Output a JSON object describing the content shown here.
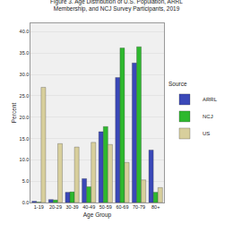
{
  "chart_data": {
    "type": "bar",
    "title": "Figure 3. Age Distribution of U.S. Population, ARRL Membership, and NCJ Survey Participants, 2019",
    "x_label": "Age Group",
    "y_label": "Percent",
    "legend_title": "Source",
    "categories": [
      "1-19",
      "20-29",
      "30-39",
      "40-49",
      "50-59",
      "60-69",
      "70-79",
      "80+"
    ],
    "series": [
      {
        "name": "ARRL",
        "color": "#3a48b8",
        "values": [
          0.3,
          0.7,
          2.4,
          5.6,
          16.6,
          29.3,
          32.7,
          12.3
        ]
      },
      {
        "name": "NCJ",
        "color": "#2eb82e",
        "values": [
          0.1,
          0.6,
          2.5,
          3.7,
          17.8,
          36.2,
          36.5,
          2.4
        ]
      },
      {
        "name": "US",
        "color": "#d8cf9c",
        "values": [
          27.0,
          13.8,
          13.0,
          14.1,
          13.6,
          9.4,
          5.3,
          3.5
        ]
      }
    ],
    "ylim": [
      0,
      42
    ],
    "yticks": [
      {
        "value": 0,
        "label": "0.0"
      },
      {
        "value": 5,
        "label": "5.0"
      },
      {
        "value": 10,
        "label": "10.0"
      },
      {
        "value": 15,
        "label": "15.0"
      },
      {
        "value": 20,
        "label": "20.0"
      },
      {
        "value": 25,
        "label": "25.0"
      },
      {
        "value": 30,
        "label": "30.0"
      },
      {
        "value": 35,
        "label": "35.0"
      },
      {
        "value": 40,
        "label": "40.0"
      }
    ],
    "grid": true,
    "legend": "right"
  }
}
